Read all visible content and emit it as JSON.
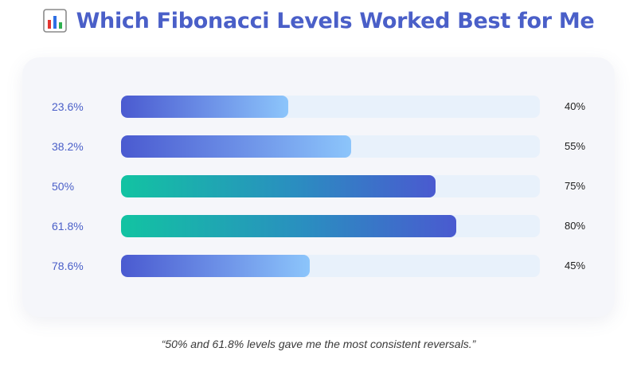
{
  "header": {
    "icon": "bar-chart-icon",
    "title": "Which Fibonacci Levels Worked Best for Me"
  },
  "colors": {
    "title": "#4a5fc8",
    "track": "#e8f1fb",
    "blue_gradient": [
      "#4a5ad0",
      "#8cc5fb"
    ],
    "green_gradient": [
      "#12c3a2",
      "#4a5ad0"
    ]
  },
  "chart_data": {
    "type": "bar",
    "orientation": "horizontal",
    "title": "Which Fibonacci Levels Worked Best for Me",
    "xlabel": "",
    "ylabel": "",
    "xlim": [
      0,
      100
    ],
    "grid": false,
    "categories": [
      "23.6%",
      "38.2%",
      "50%",
      "61.8%",
      "78.6%"
    ],
    "values": [
      40,
      55,
      75,
      80,
      45
    ],
    "value_labels": [
      "40%",
      "55%",
      "75%",
      "80%",
      "45%"
    ],
    "highlight": [
      false,
      false,
      true,
      true,
      false
    ]
  },
  "footer": {
    "quote": "“50% and 61.8% levels gave me the most consistent reversals.”"
  }
}
